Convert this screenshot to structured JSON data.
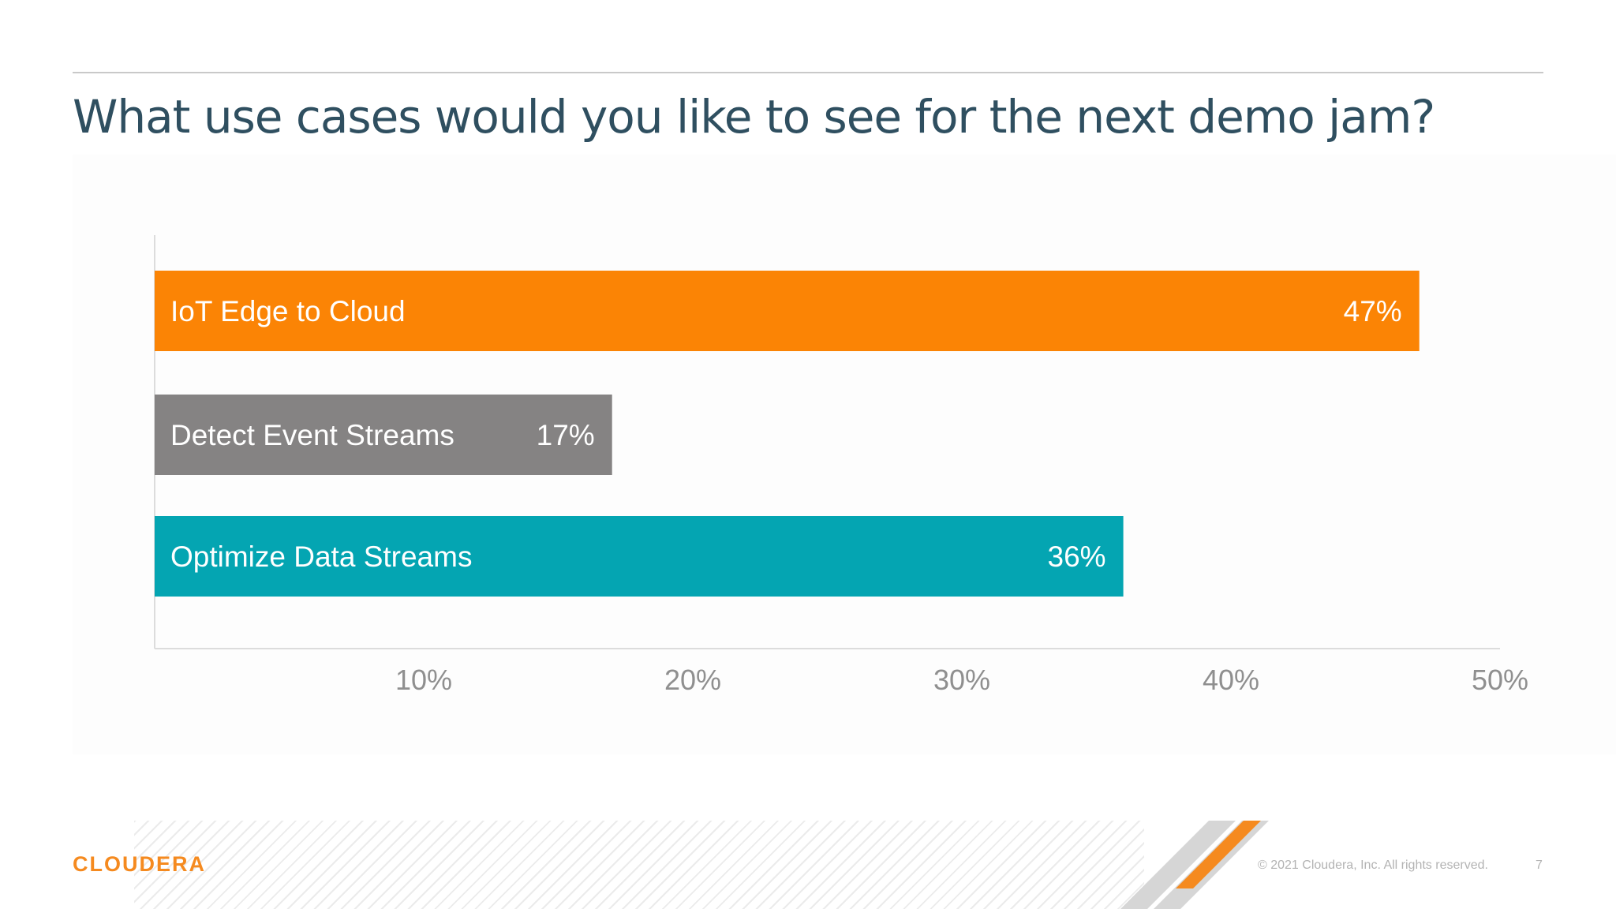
{
  "slide": {
    "title": "What use cases would you like to see for the next demo jam?",
    "logo_text": "CLOUDERA",
    "copyright": "© 2021 Cloudera, Inc. All rights reserved.",
    "page_number": "7"
  },
  "chart_data": {
    "type": "bar",
    "orientation": "horizontal",
    "title": "",
    "xlabel": "",
    "ylabel": "",
    "xlim": [
      0,
      50
    ],
    "ticks": [
      10,
      20,
      30,
      40,
      50
    ],
    "tick_labels": [
      "10%",
      "20%",
      "30%",
      "40%",
      "50%"
    ],
    "grid": false,
    "legend": "none",
    "categories": [
      "IoT Edge to Cloud",
      "Detect Event Streams",
      "Optimize Data Streams"
    ],
    "values": [
      47,
      17,
      36
    ],
    "value_labels": [
      "47%",
      "17%",
      "36%"
    ],
    "colors": [
      "#fb8405",
      "#858383",
      "#04a5b2"
    ]
  }
}
